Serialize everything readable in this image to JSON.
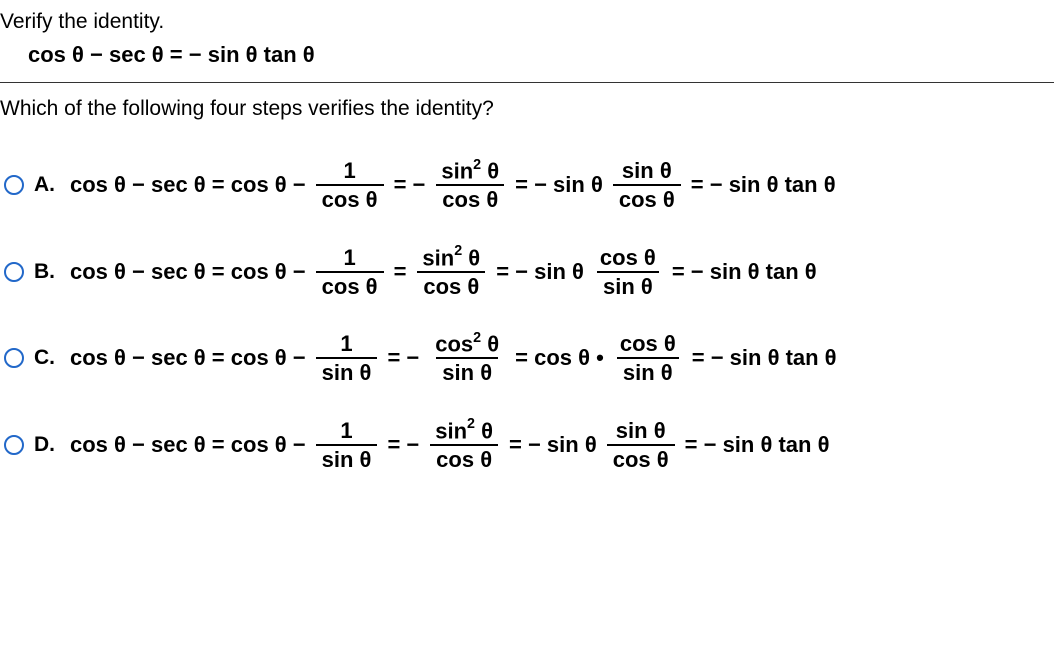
{
  "prompt1": "Verify the identity.",
  "identity_lhs": "cos  θ − sec  θ =",
  "identity_rhs_sign": " − ",
  "identity_rhs": "sin  θ tan  θ",
  "prompt2": "Which of the following four steps verifies the identity?",
  "choices": [
    {
      "letter": "A.",
      "start": "cos  θ − sec  θ = cos  θ −",
      "f1_num": "1",
      "f1_den": "cos  θ",
      "eq2": "=  −",
      "f2_num_base": "sin",
      "f2_num_exp": "2",
      "f2_num_arg": " θ",
      "f2_den": "cos  θ",
      "eq3": "=  − sin  θ",
      "f3_num": "sin  θ",
      "f3_den": "cos  θ",
      "eq4": "=  − sin  θ tan  θ"
    },
    {
      "letter": "B.",
      "start": "cos  θ − sec  θ = cos  θ −",
      "f1_num": "1",
      "f1_den": "cos  θ",
      "eq2": "=",
      "f2_num_base": "sin",
      "f2_num_exp": "2",
      "f2_num_arg": " θ",
      "f2_den": "cos  θ",
      "eq3": "=  − sin  θ",
      "f3_num": "cos  θ",
      "f3_den": "sin  θ",
      "eq4": "=  − sin  θ tan  θ"
    },
    {
      "letter": "C.",
      "start": "cos  θ − sec  θ = cos  θ −",
      "f1_num": "1",
      "f1_den": "sin  θ",
      "eq2": "=  −",
      "f2_num_base": "cos",
      "f2_num_exp": "2",
      "f2_num_arg": " θ",
      "f2_den": "sin  θ",
      "eq3": "=  cos  θ •",
      "f3_num": "cos  θ",
      "f3_den": "sin  θ",
      "eq4": "=  − sin  θ tan  θ"
    },
    {
      "letter": "D.",
      "start": "cos  θ − sec  θ = cos  θ −",
      "f1_num": "1",
      "f1_den": "sin  θ",
      "eq2": "=  −",
      "f2_num_base": "sin",
      "f2_num_exp": "2",
      "f2_num_arg": " θ",
      "f2_den": "cos  θ",
      "eq3": "=  − sin  θ",
      "f3_num": "sin  θ",
      "f3_den": "cos  θ",
      "eq4": "=  − sin  θ tan  θ"
    }
  ]
}
